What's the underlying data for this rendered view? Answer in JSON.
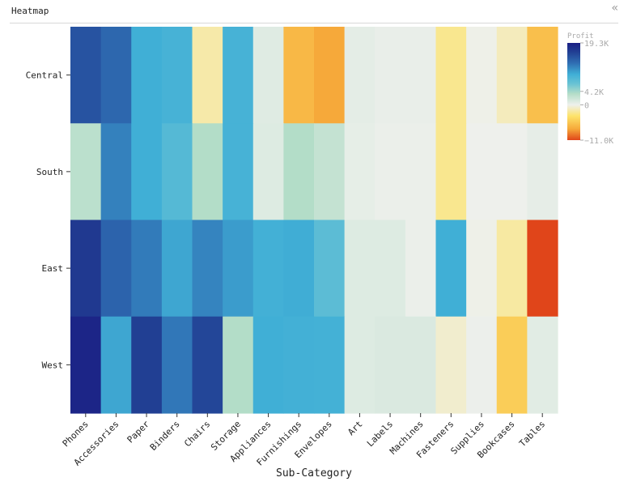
{
  "panel": {
    "title": "Heatmap",
    "collapse_icon": "double-chevron-left-icon",
    "collapse_glyph": "«"
  },
  "chart_data": {
    "type": "heatmap",
    "xlabel": "Sub-Category",
    "ylabel": "",
    "x": [
      "Phones",
      "Accessories",
      "Paper",
      "Binders",
      "Chairs",
      "Storage",
      "Appliances",
      "Furnishings",
      "Envelopes",
      "Art",
      "Labels",
      "Machines",
      "Fasteners",
      "Supplies",
      "Bookcases",
      "Tables"
    ],
    "y": [
      "Central",
      "South",
      "East",
      "West"
    ],
    "values": [
      [
        15000,
        13500,
        9500,
        9000,
        -1800,
        9000,
        900,
        -6500,
        -7500,
        600,
        300,
        300,
        -2500,
        -100,
        -1300,
        -6000
      ],
      [
        3000,
        12000,
        9500,
        8000,
        3500,
        9000,
        1000,
        3500,
        2500,
        450,
        200,
        200,
        -2500,
        20,
        20,
        500
      ],
      [
        17000,
        13800,
        12300,
        10000,
        11800,
        10500,
        9300,
        9600,
        7500,
        1000,
        1000,
        200,
        9500,
        -100,
        -2000,
        -11000
      ],
      [
        18800,
        10000,
        16500,
        12500,
        16000,
        3500,
        9500,
        9300,
        9200,
        1000,
        1200,
        1200,
        -800,
        100,
        -5000,
        800
      ]
    ],
    "colorbar": {
      "title": "Profit",
      "min": -11000,
      "max": 19300,
      "ticks": [
        19300,
        4200,
        0,
        -11000
      ],
      "tick_labels": [
        "19.3K",
        "4.2K",
        "0",
        "−11.0K"
      ],
      "stops": [
        {
          "v": -11000,
          "c": "#e0451a"
        },
        {
          "v": -7500,
          "c": "#f6a93a"
        },
        {
          "v": -3500,
          "c": "#fde36a"
        },
        {
          "v": 0,
          "c": "#eef0ec"
        },
        {
          "v": 3500,
          "c": "#b3ddc8"
        },
        {
          "v": 6500,
          "c": "#6ac3d4"
        },
        {
          "v": 9500,
          "c": "#40afd6"
        },
        {
          "v": 13000,
          "c": "#2f6eb3"
        },
        {
          "v": 16500,
          "c": "#213f93"
        },
        {
          "v": 19300,
          "c": "#1b1f84"
        }
      ]
    }
  }
}
